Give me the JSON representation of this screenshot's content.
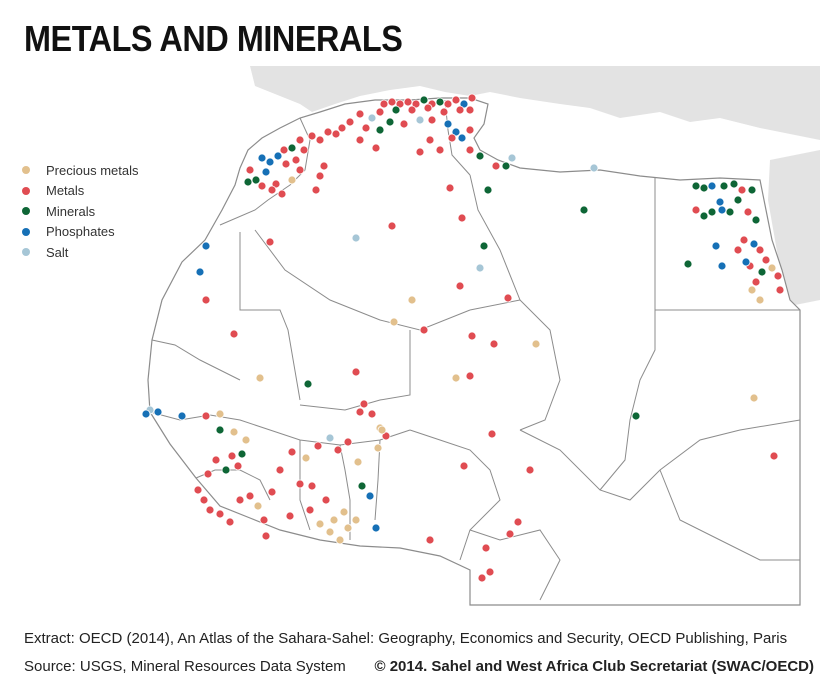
{
  "title": "METALS AND MINERALS",
  "legend": [
    {
      "label": "Precious metals",
      "color": "#e2c08d",
      "icon": "dot-precious-metals"
    },
    {
      "label": "Metals",
      "color": "#e04c52",
      "icon": "dot-metals"
    },
    {
      "label": "Minerals",
      "color": "#0e6636",
      "icon": "dot-minerals"
    },
    {
      "label": "Phosphates",
      "color": "#1670b6",
      "icon": "dot-phosphates"
    },
    {
      "label": "Salt",
      "color": "#a6c6d6",
      "icon": "dot-salt"
    }
  ],
  "footer": {
    "extract": "Extract: OECD (2014), An Atlas of the Sahara-Sahel: Geography, Economics  and Security, OECD Publishing, Paris",
    "source": "Source: USGS, Mineral Resources Data System",
    "copyright": "© 2014. Sahel and West Africa Club Secretariat (SWAC/OECD)"
  },
  "colors": {
    "land": "#ffffff",
    "outside_land": "#e3e3e3",
    "sea": "#ffffff",
    "border": "#8c8c8c"
  }
}
